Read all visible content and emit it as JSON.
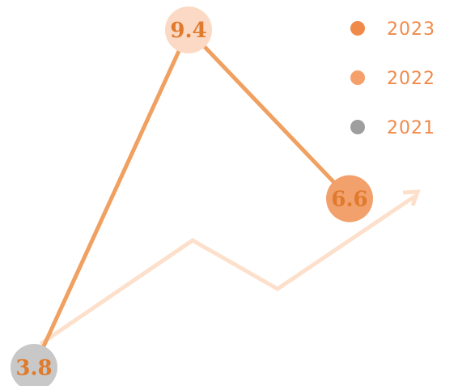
{
  "chart_data": {
    "type": "line",
    "x": [
      "2021",
      "2022",
      "2023"
    ],
    "series": [
      {
        "name": "2021",
        "color": "#9e9e9e"
      },
      {
        "name": "2022",
        "color": "#f5a06a"
      },
      {
        "name": "2023",
        "color": "#f08a4b"
      }
    ],
    "points": [
      {
        "year": "2021",
        "value": 3.8,
        "label": "3.8",
        "color": "#c8c8c8"
      },
      {
        "year": "2022",
        "value": 9.4,
        "label": "9.4",
        "color": "#fbd9c4"
      },
      {
        "year": "2023",
        "value": 6.6,
        "label": "6.6",
        "color": "#f2a06c"
      }
    ],
    "line_color": "#f0a060",
    "decor_arrow_color": "#fde0cc",
    "ylim": [
      3.8,
      9.4
    ],
    "legend_position": "top-right",
    "title": "",
    "xlabel": "",
    "ylabel": ""
  }
}
